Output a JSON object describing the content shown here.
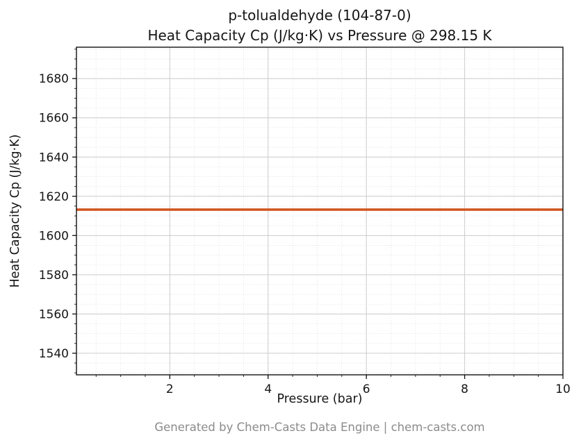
{
  "title": {
    "line1": "p-tolualdehyde (104-87-0)",
    "line2": "Heat Capacity Cp (J/kg·K) vs Pressure @ 298.15 K"
  },
  "footer": {
    "caption": "Generated by Chem-Casts Data Engine | chem-casts.com"
  },
  "chart_data": {
    "type": "line",
    "title": "p-tolualdehyde (104-87-0) Heat Capacity Cp (J/kg·K) vs Pressure @ 298.15 K",
    "xlabel": "Pressure (bar)",
    "ylabel": "Heat Capacity Cp (J/kg·K)",
    "xlim": [
      0.1,
      10
    ],
    "ylim": [
      1529,
      1696
    ],
    "x_ticks": [
      2,
      4,
      6,
      8,
      10
    ],
    "y_ticks": [
      1540,
      1560,
      1580,
      1600,
      1620,
      1640,
      1660,
      1680
    ],
    "x_minor_step": 0.5,
    "y_minor_step": 5,
    "grid": true,
    "legend": "none",
    "series": [
      {
        "name": "Cp",
        "color": "#d2541e",
        "x": [
          0.1,
          10
        ],
        "y": [
          1613.2,
          1613.2
        ]
      }
    ],
    "colors": {
      "line": "#d2541e",
      "major_grid": "#cccccc",
      "minor_grid": "#dedede",
      "axis": "#111111",
      "tick_text": "#151515"
    }
  }
}
